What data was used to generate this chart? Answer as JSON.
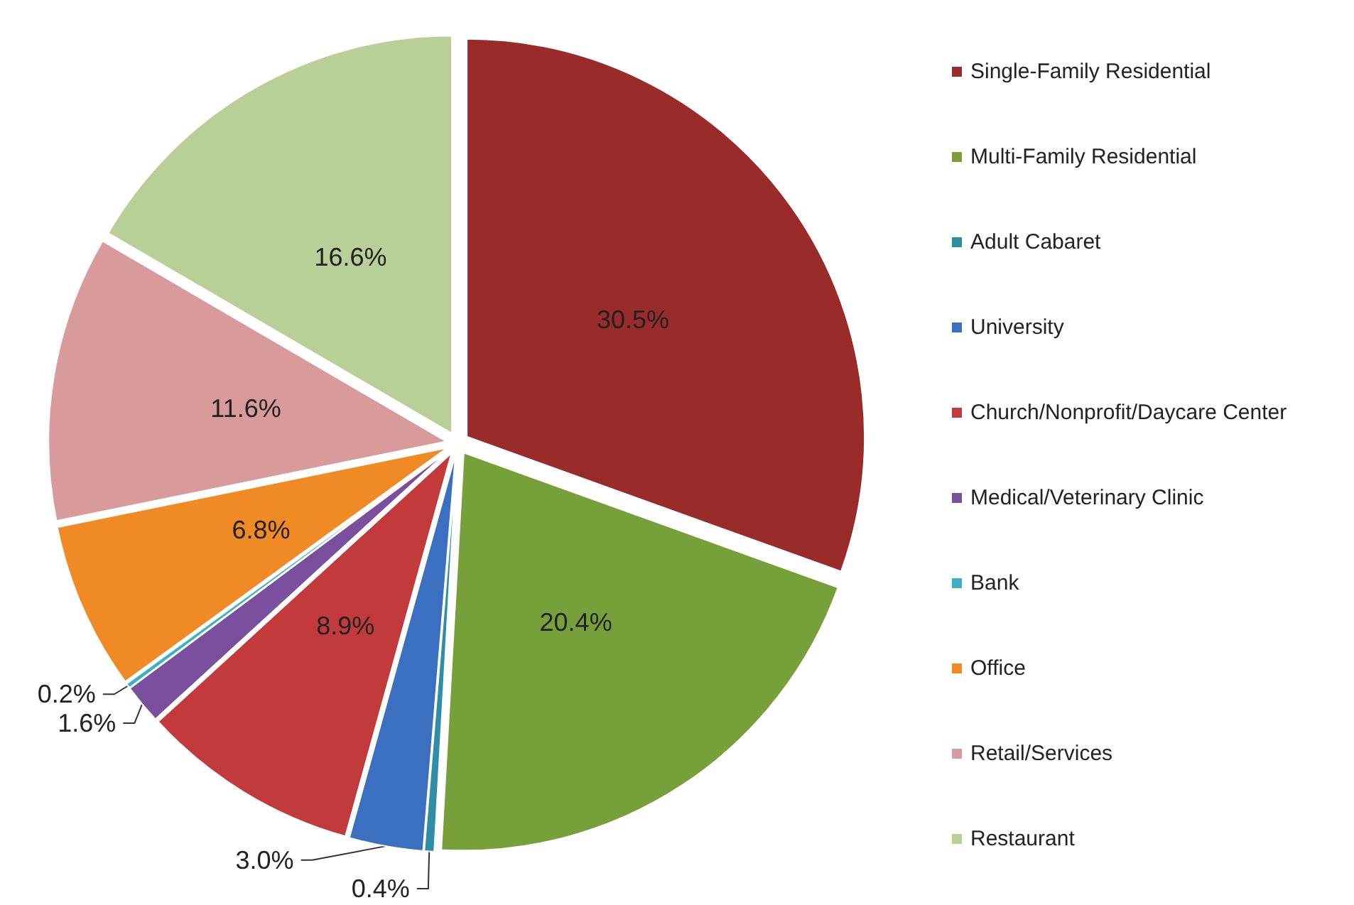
{
  "chart_data": {
    "type": "pie",
    "categories": [
      "Single-Family Residential",
      "Multi-Family Residential",
      "Adult Cabaret",
      "University",
      "Church/Nonprofit/Daycare Center",
      "Medical/Veterinary Clinic",
      "Bank",
      "Office",
      "Retail/Services",
      "Restaurant"
    ],
    "values": [
      30.5,
      20.4,
      0.4,
      3.0,
      8.9,
      1.6,
      0.2,
      6.8,
      11.6,
      16.6
    ],
    "value_labels": [
      "30.5%",
      "20.4%",
      "0.4%",
      "3.0%",
      "8.9%",
      "1.6%",
      "0.2%",
      "6.8%",
      "11.6%",
      "16.6%"
    ],
    "colors": [
      "#9a2b2b",
      "#78a03a",
      "#2f8ea6",
      "#3b70c0",
      "#c23a3b",
      "#7a4f9e",
      "#3bb0c8",
      "#f08a24",
      "#d89a9b",
      "#b9cf98"
    ],
    "legend": "right"
  }
}
